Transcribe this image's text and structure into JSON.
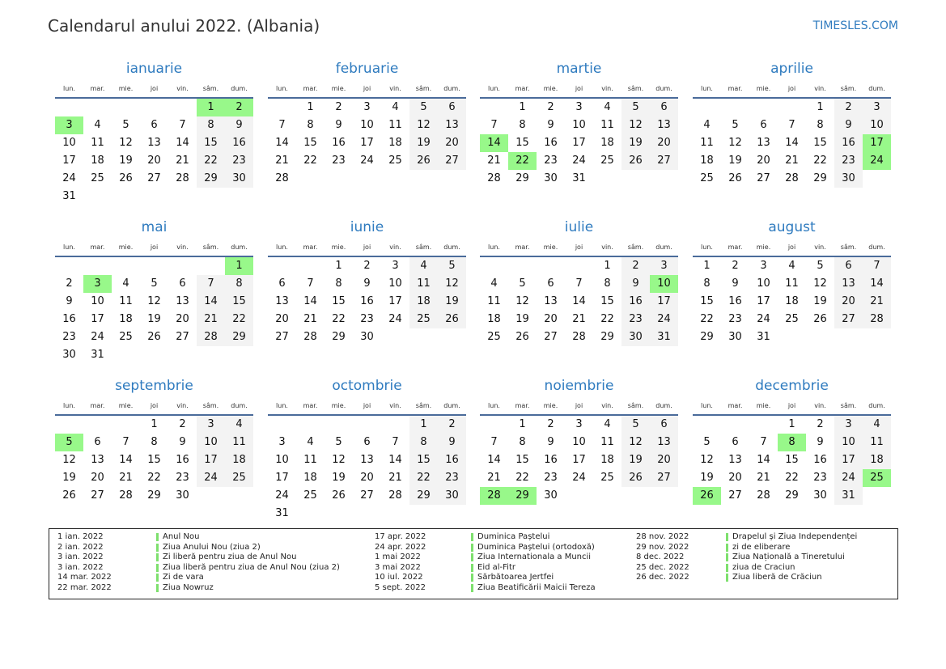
{
  "header": {
    "title": "Calendarul anului 2022. (Albania)",
    "site": "TIMESLES.COM"
  },
  "year": 2022,
  "weekdays": [
    "lun.",
    "mar.",
    "mie.",
    "joi",
    "vin.",
    "sâm.",
    "dum."
  ],
  "colors": {
    "accent": "#2f7bbf",
    "holiday": "#98f88a",
    "weekend": "#f3f3f3"
  },
  "months": [
    {
      "name": "ianuarie",
      "holidays": [
        1,
        2,
        3
      ]
    },
    {
      "name": "februarie",
      "holidays": []
    },
    {
      "name": "martie",
      "holidays": [
        14,
        22
      ]
    },
    {
      "name": "aprilie",
      "holidays": [
        17,
        24
      ]
    },
    {
      "name": "mai",
      "holidays": [
        1,
        3
      ]
    },
    {
      "name": "iunie",
      "holidays": []
    },
    {
      "name": "iulie",
      "holidays": [
        10
      ]
    },
    {
      "name": "august",
      "holidays": []
    },
    {
      "name": "septembrie",
      "holidays": [
        5
      ]
    },
    {
      "name": "octombrie",
      "holidays": []
    },
    {
      "name": "noiembrie",
      "holidays": [
        28,
        29
      ]
    },
    {
      "name": "decembrie",
      "holidays": [
        8,
        25,
        26
      ]
    }
  ],
  "legend": [
    [
      {
        "date": "1 ian. 2022",
        "name": "Anul Nou"
      },
      {
        "date": "2 ian. 2022",
        "name": "Ziua Anului Nou (ziua 2)"
      },
      {
        "date": "3 ian. 2022",
        "name": "Zi liberă pentru ziua de Anul Nou"
      },
      {
        "date": "3 ian. 2022",
        "name": "Ziua liberă pentru ziua de Anul Nou (ziua 2)"
      },
      {
        "date": "14 mar. 2022",
        "name": "Zi de vara"
      },
      {
        "date": "22 mar. 2022",
        "name": "Ziua Nowruz"
      }
    ],
    [
      {
        "date": "17 apr. 2022",
        "name": "Duminica Paștelui"
      },
      {
        "date": "24 apr. 2022",
        "name": "Duminica Paștelui (ortodoxă)"
      },
      {
        "date": "1 mai 2022",
        "name": "Ziua Internationala a Muncii"
      },
      {
        "date": "3 mai 2022",
        "name": "Eid al-Fitr"
      },
      {
        "date": "10 iul. 2022",
        "name": "Sărbătoarea Jertfei"
      },
      {
        "date": "5 sept. 2022",
        "name": "Ziua Beatificării Maicii Tereza"
      }
    ],
    [
      {
        "date": "28 nov. 2022",
        "name": "Drapelul și Ziua Independenței"
      },
      {
        "date": "29 nov. 2022",
        "name": "zi de eliberare"
      },
      {
        "date": "8 dec. 2022",
        "name": "Ziua Națională a Tineretului"
      },
      {
        "date": "25 dec. 2022",
        "name": "ziua de Craciun"
      },
      {
        "date": "26 dec. 2022",
        "name": "Ziua liberă de Crăciun"
      }
    ]
  ]
}
